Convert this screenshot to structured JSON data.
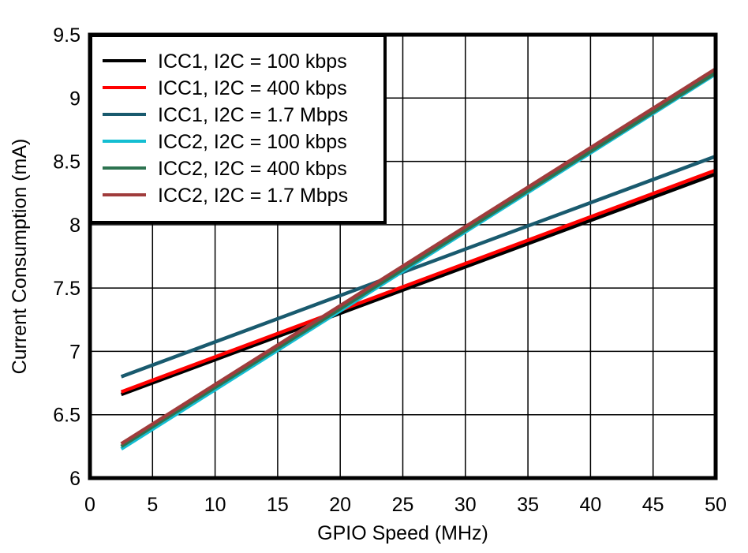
{
  "chart_data": {
    "type": "line",
    "title": "",
    "xlabel": "GPIO Speed (MHz)",
    "ylabel": "Current Consumption (mA)",
    "xlim": [
      0,
      50
    ],
    "ylim": [
      6,
      9.5
    ],
    "xticks": [
      0,
      5,
      10,
      15,
      20,
      25,
      30,
      35,
      40,
      45,
      50
    ],
    "yticks": [
      6,
      6.5,
      7,
      7.5,
      8,
      8.5,
      9,
      9.5
    ],
    "ytick_labels": [
      "6",
      "6.5",
      "7",
      "7.5",
      "8",
      "8.5",
      "9",
      "9.5"
    ],
    "grid": true,
    "legend_position": "upper left",
    "x": [
      2.5,
      50
    ],
    "series": [
      {
        "name": "ICC1, I2C = 100 kbps",
        "color": "#000000",
        "values": [
          6.66,
          8.4
        ]
      },
      {
        "name": "ICC1, I2C = 400 kbps",
        "color": "#FF0000",
        "values": [
          6.68,
          8.43
        ]
      },
      {
        "name": "ICC1, I2C = 1.7 Mbps",
        "color": "#195A6E",
        "values": [
          6.8,
          8.54
        ]
      },
      {
        "name": "ICC2, I2C = 100 kbps",
        "color": "#14BED2",
        "values": [
          6.23,
          9.19
        ]
      },
      {
        "name": "ICC2, I2C = 400 kbps",
        "color": "#2D7350",
        "values": [
          6.25,
          9.2
        ]
      },
      {
        "name": "ICC2, I2C = 1.7 Mbps",
        "color": "#A03C3C",
        "values": [
          6.27,
          9.23
        ]
      }
    ]
  }
}
